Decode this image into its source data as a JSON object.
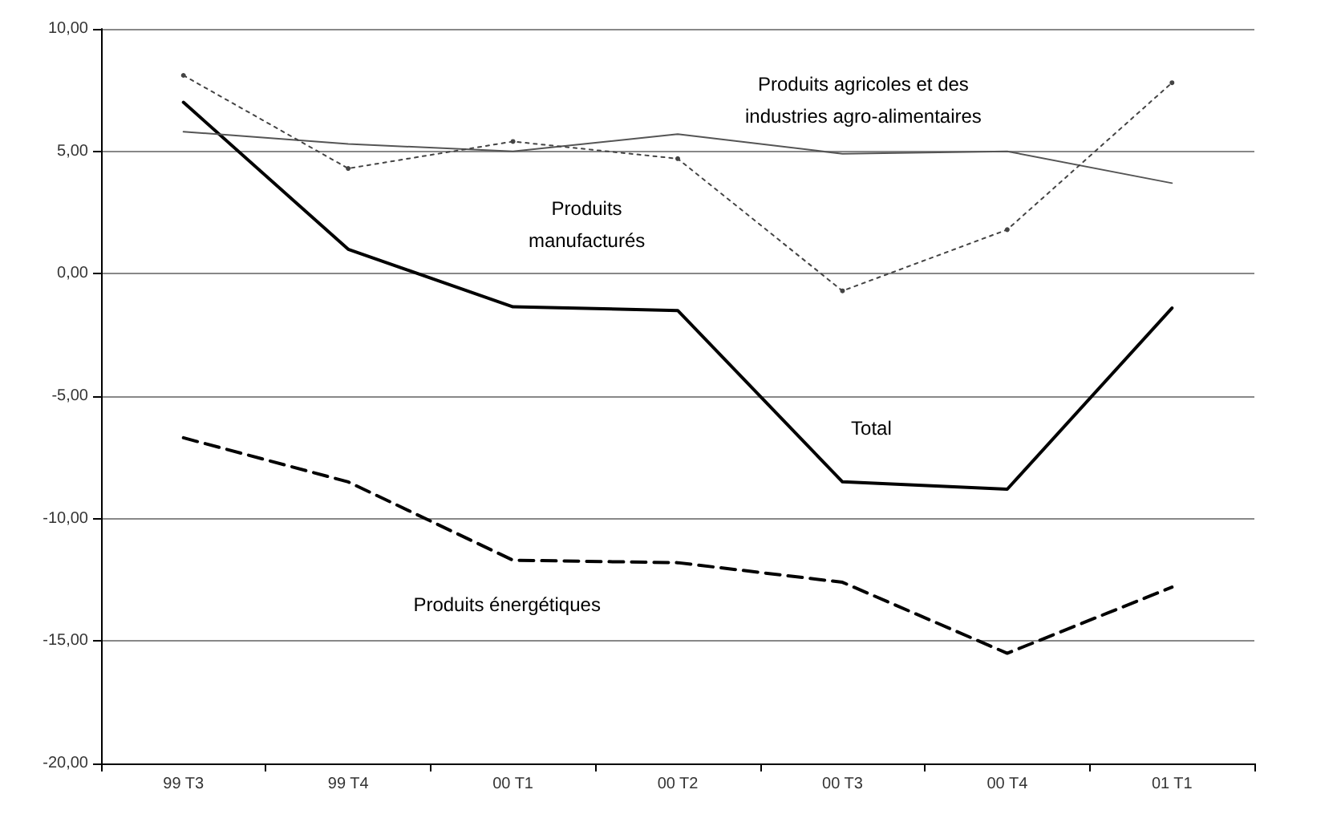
{
  "chart_data": {
    "type": "line",
    "categories": [
      "99 T3",
      "99 T4",
      "00 T1",
      "00 T2",
      "00 T3",
      "00 T4",
      "01 T1"
    ],
    "series": [
      {
        "name": "Total",
        "color": "#000000",
        "line_style": "solid",
        "marker": "none",
        "values": [
          7.0,
          1.0,
          -1.35,
          -1.5,
          -8.5,
          -8.8,
          -1.4
        ]
      },
      {
        "name": "Produits agricoles et des\nindustries agro-alimentaires",
        "color": "#555555",
        "line_style": "solid",
        "marker": "none",
        "values": [
          5.8,
          5.3,
          5.0,
          5.7,
          4.9,
          5.0,
          3.7
        ]
      },
      {
        "name": "Produits\nmanufacturés",
        "color": "#444444",
        "line_style": "dotted",
        "marker": "circle",
        "values": [
          8.1,
          4.3,
          5.4,
          4.7,
          -0.7,
          1.8,
          7.8
        ]
      },
      {
        "name": "Produits énergétiques",
        "color": "#000000",
        "line_style": "dashed",
        "marker": "none",
        "values": [
          -6.7,
          -8.5,
          -11.7,
          -11.8,
          -12.6,
          -15.5,
          -12.8
        ]
      }
    ],
    "ylim": [
      -20,
      10
    ],
    "yticks": [
      {
        "value": -20,
        "label": "-20,00"
      },
      {
        "value": -15,
        "label": "-15,00"
      },
      {
        "value": -10,
        "label": "-10,00"
      },
      {
        "value": -5,
        "label": "-5,00"
      },
      {
        "value": 0,
        "label": "0,00"
      },
      {
        "value": 5,
        "label": "5,00"
      },
      {
        "value": 10,
        "label": "10,00"
      }
    ],
    "grid": "y",
    "legend": false
  }
}
